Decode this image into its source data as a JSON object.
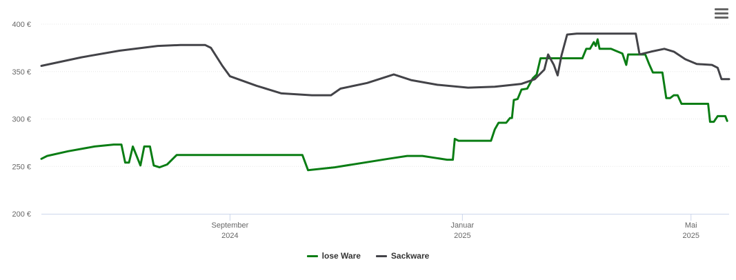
{
  "chart_data": {
    "type": "line",
    "x_axis": {
      "type": "date",
      "ticks": [
        {
          "date": "2024-09-01",
          "label1": "September",
          "label2": "2024"
        },
        {
          "date": "2025-01-01",
          "label1": "Januar",
          "label2": "2025"
        },
        {
          "date": "2025-05-01",
          "label1": "Mai",
          "label2": "2025"
        }
      ],
      "range": [
        "2024-05-25",
        "2025-05-21"
      ]
    },
    "y_axis": {
      "ticks": [
        200,
        250,
        300,
        350,
        400
      ],
      "tick_format": "{v} €",
      "ylim": [
        200,
        400
      ],
      "grid": true
    },
    "series": [
      {
        "name": "lose Ware",
        "color": "#0a7d14",
        "points": [
          [
            "2024-05-25",
            258
          ],
          [
            "2024-05-28",
            261
          ],
          [
            "2024-06-08",
            266
          ],
          [
            "2024-06-22",
            271
          ],
          [
            "2024-07-02",
            273
          ],
          [
            "2024-07-06",
            273
          ],
          [
            "2024-07-08",
            254
          ],
          [
            "2024-07-10",
            254
          ],
          [
            "2024-07-12",
            271
          ],
          [
            "2024-07-16",
            251
          ],
          [
            "2024-07-18",
            271
          ],
          [
            "2024-07-21",
            271
          ],
          [
            "2024-07-23",
            251
          ],
          [
            "2024-07-26",
            249
          ],
          [
            "2024-07-30",
            252
          ],
          [
            "2024-08-04",
            262
          ],
          [
            "2024-10-09",
            262
          ],
          [
            "2024-10-12",
            246
          ],
          [
            "2024-10-26",
            249
          ],
          [
            "2024-11-23",
            258
          ],
          [
            "2024-12-03",
            261
          ],
          [
            "2024-12-11",
            261
          ],
          [
            "2024-12-24",
            257
          ],
          [
            "2024-12-27",
            257
          ],
          [
            "2024-12-28",
            279
          ],
          [
            "2024-12-30",
            277
          ],
          [
            "2025-01-16",
            277
          ],
          [
            "2025-01-18",
            289
          ],
          [
            "2025-01-20",
            296
          ],
          [
            "2025-01-24",
            296
          ],
          [
            "2025-01-26",
            301
          ],
          [
            "2025-01-27",
            301
          ],
          [
            "2025-01-28",
            320
          ],
          [
            "2025-01-30",
            321
          ],
          [
            "2025-02-01",
            331
          ],
          [
            "2025-02-04",
            332
          ],
          [
            "2025-02-07",
            343
          ],
          [
            "2025-02-09",
            347
          ],
          [
            "2025-02-11",
            364
          ],
          [
            "2025-03-05",
            364
          ],
          [
            "2025-03-07",
            374
          ],
          [
            "2025-03-09",
            374
          ],
          [
            "2025-03-11",
            381
          ],
          [
            "2025-03-12",
            377
          ],
          [
            "2025-03-13",
            384
          ],
          [
            "2025-03-14",
            374
          ],
          [
            "2025-03-20",
            374
          ],
          [
            "2025-03-26",
            369
          ],
          [
            "2025-03-28",
            357
          ],
          [
            "2025-03-29",
            368
          ],
          [
            "2025-04-07",
            368
          ],
          [
            "2025-04-09",
            358
          ],
          [
            "2025-04-11",
            349
          ],
          [
            "2025-04-16",
            349
          ],
          [
            "2025-04-18",
            322
          ],
          [
            "2025-04-20",
            322
          ],
          [
            "2025-04-22",
            325
          ],
          [
            "2025-04-24",
            325
          ],
          [
            "2025-04-26",
            316
          ],
          [
            "2025-05-10",
            316
          ],
          [
            "2025-05-11",
            297
          ],
          [
            "2025-05-13",
            297
          ],
          [
            "2025-05-15",
            303
          ],
          [
            "2025-05-19",
            303
          ],
          [
            "2025-05-20",
            298
          ]
        ]
      },
      {
        "name": "Sackware",
        "color": "#434348",
        "points": [
          [
            "2024-05-25",
            356
          ],
          [
            "2024-06-15",
            365
          ],
          [
            "2024-07-05",
            372
          ],
          [
            "2024-07-25",
            377
          ],
          [
            "2024-08-06",
            378
          ],
          [
            "2024-08-19",
            378
          ],
          [
            "2024-08-22",
            375
          ],
          [
            "2024-08-28",
            356
          ],
          [
            "2024-09-01",
            345
          ],
          [
            "2024-09-15",
            335
          ],
          [
            "2024-09-28",
            327
          ],
          [
            "2024-10-14",
            325
          ],
          [
            "2024-10-24",
            325
          ],
          [
            "2024-10-29",
            332
          ],
          [
            "2024-11-12",
            338
          ],
          [
            "2024-11-26",
            347
          ],
          [
            "2024-12-05",
            341
          ],
          [
            "2024-12-19",
            336
          ],
          [
            "2025-01-04",
            333
          ],
          [
            "2025-01-18",
            334
          ],
          [
            "2025-02-01",
            337
          ],
          [
            "2025-02-08",
            342
          ],
          [
            "2025-02-13",
            352
          ],
          [
            "2025-02-15",
            368
          ],
          [
            "2025-02-18",
            357
          ],
          [
            "2025-02-20",
            346
          ],
          [
            "2025-02-22",
            367
          ],
          [
            "2025-02-25",
            389
          ],
          [
            "2025-03-02",
            390
          ],
          [
            "2025-03-28",
            390
          ],
          [
            "2025-04-02",
            390
          ],
          [
            "2025-04-04",
            368
          ],
          [
            "2025-04-10",
            371
          ],
          [
            "2025-04-17",
            374
          ],
          [
            "2025-04-22",
            371
          ],
          [
            "2025-04-28",
            363
          ],
          [
            "2025-05-04",
            358
          ],
          [
            "2025-05-12",
            357
          ],
          [
            "2025-05-15",
            354
          ],
          [
            "2025-05-17",
            342
          ],
          [
            "2025-05-21",
            342
          ]
        ]
      }
    ],
    "legend": {
      "placement": "bottom-center"
    }
  },
  "ui": {
    "menu_icon": "hamburger-icon",
    "grid_color": "#e6e6e6",
    "axis_color": "#ccd6eb"
  }
}
